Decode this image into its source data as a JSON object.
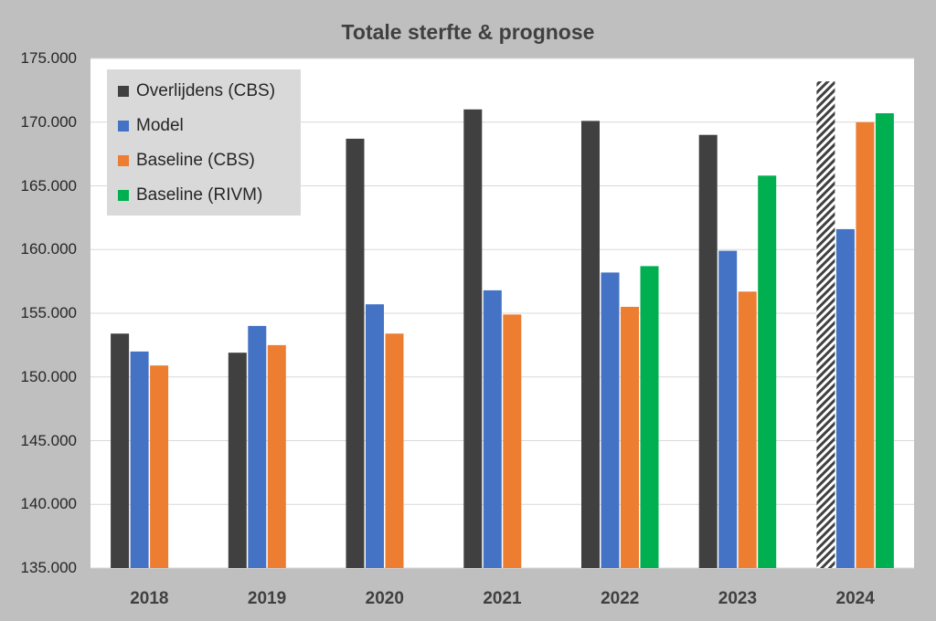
{
  "chart_data": {
    "type": "bar",
    "title": "Totale sterfte & prognose",
    "xlabel": "",
    "ylabel": "",
    "categories": [
      "2018",
      "2019",
      "2020",
      "2021",
      "2022",
      "2023",
      "2024"
    ],
    "ylim": [
      135000,
      175000
    ],
    "yticks": [
      135000,
      140000,
      145000,
      150000,
      155000,
      160000,
      165000,
      170000,
      175000
    ],
    "ytick_labels": [
      "135.000",
      "140.000",
      "145.000",
      "150.000",
      "155.000",
      "160.000",
      "165.000",
      "170.000",
      "175.000"
    ],
    "grid": true,
    "legend_position": "top-left",
    "series": [
      {
        "name": "Overlijdens (CBS)",
        "color": "#404040",
        "values": [
          153400,
          151900,
          168700,
          171000,
          170100,
          169000,
          173200
        ],
        "hatched_last": true
      },
      {
        "name": "Model",
        "color": "#4472c4",
        "values": [
          152000,
          154000,
          155700,
          156800,
          158200,
          159900,
          161600
        ]
      },
      {
        "name": "Baseline (CBS)",
        "color": "#ed7d31",
        "values": [
          150900,
          152500,
          153400,
          154900,
          155500,
          156700,
          170000
        ]
      },
      {
        "name": "Baseline (RIVM)",
        "color": "#00b050",
        "values": [
          null,
          null,
          null,
          null,
          158700,
          165800,
          170700
        ]
      }
    ]
  }
}
